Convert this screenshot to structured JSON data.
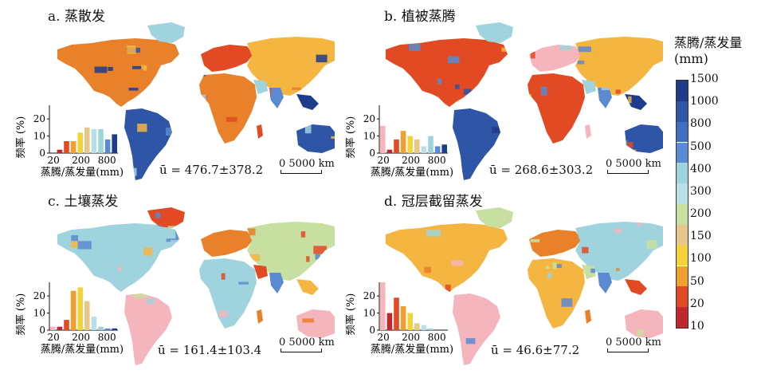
{
  "panels": [
    {
      "id": "a",
      "title": "a. 蒸散发",
      "stat": "ū = 476.7±378.2",
      "map_palette": [
        "#e9802a",
        "#f5b541",
        "#9fd3dd",
        "#5a8ad1",
        "#2e55a6",
        "#1f3b8c",
        "#e24a24"
      ],
      "histogram": {
        "ylabel": "频率 (%)",
        "xlabel": "蒸腾/蒸发量(mm)",
        "yticks": [
          "0",
          "10",
          "20"
        ],
        "xticks": [
          "20",
          "200",
          "800"
        ],
        "values": [
          0,
          2,
          7,
          7,
          12,
          15,
          14,
          14,
          8,
          11
        ]
      }
    },
    {
      "id": "b",
      "title": "b. 植被蒸腾",
      "stat": "ū = 268.6±303.2",
      "map_palette": [
        "#f4b5bc",
        "#e24a24",
        "#f5b541",
        "#9fd3dd",
        "#5a8ad1",
        "#2e55a6",
        "#1f3b8c"
      ],
      "histogram": {
        "ylabel": "频率 (%)",
        "xlabel": "蒸腾/蒸发量(mm)",
        "yticks": [
          "0",
          "10",
          "20"
        ],
        "xticks": [
          "20",
          "200",
          "800"
        ],
        "values": [
          16,
          2,
          8,
          13,
          10,
          8,
          4,
          10,
          4,
          5
        ]
      }
    },
    {
      "id": "c",
      "title": "c. 土壤蒸发",
      "stat": "ū = 161.4±103.4",
      "map_palette": [
        "#f5b541",
        "#e9802a",
        "#9fd3dd",
        "#c7dfa0",
        "#e24a24",
        "#5a8ad1",
        "#f4b5bc"
      ],
      "histogram": {
        "ylabel": "频率 (%)",
        "xlabel": "蒸腾/蒸发量(mm)",
        "yticks": [
          "0",
          "10",
          "20"
        ],
        "xticks": [
          "20",
          "200",
          "800"
        ],
        "values": [
          2,
          2,
          6,
          23,
          25,
          17,
          8,
          2,
          1,
          1
        ]
      }
    },
    {
      "id": "d",
      "title": "d. 冠层截留蒸发",
      "stat": "ū = 46.6±77.2",
      "map_palette": [
        "#f4b5bc",
        "#e24a24",
        "#e9802a",
        "#f5b541",
        "#9fd3dd",
        "#c7dfa0",
        "#5a8ad1"
      ],
      "histogram": {
        "ylabel": "频率 (%)",
        "xlabel": "蒸腾/蒸发量(mm)",
        "yticks": [
          "0",
          "10",
          "20"
        ],
        "xticks": [
          "20",
          "200",
          "800"
        ],
        "values": [
          28,
          10,
          19,
          14,
          10,
          4,
          3,
          1,
          0,
          0
        ]
      }
    }
  ],
  "scale_bar": {
    "label": "0   5000 km"
  },
  "legend": {
    "title": "蒸腾/蒸发量",
    "unit": "(mm)",
    "ticks": [
      "1500",
      "1000",
      "800",
      "500",
      "400",
      "300",
      "200",
      "150",
      "100",
      "50",
      "20",
      "10"
    ],
    "colors": [
      "#1f3b8c",
      "#2e55a6",
      "#3f6fc0",
      "#5a8ad1",
      "#9fd3dd",
      "#b8e0e6",
      "#c7dfa0",
      "#e9c78a",
      "#f5d23a",
      "#f0a030",
      "#e24a24",
      "#c0282c"
    ]
  },
  "hist_bar_colors": [
    "#f4b5bc",
    "#c0282c",
    "#e24a24",
    "#f0a030",
    "#f5d23a",
    "#e9c78a",
    "#b8e0e6",
    "#9fd3dd",
    "#5a8ad1",
    "#1f3b8c"
  ]
}
